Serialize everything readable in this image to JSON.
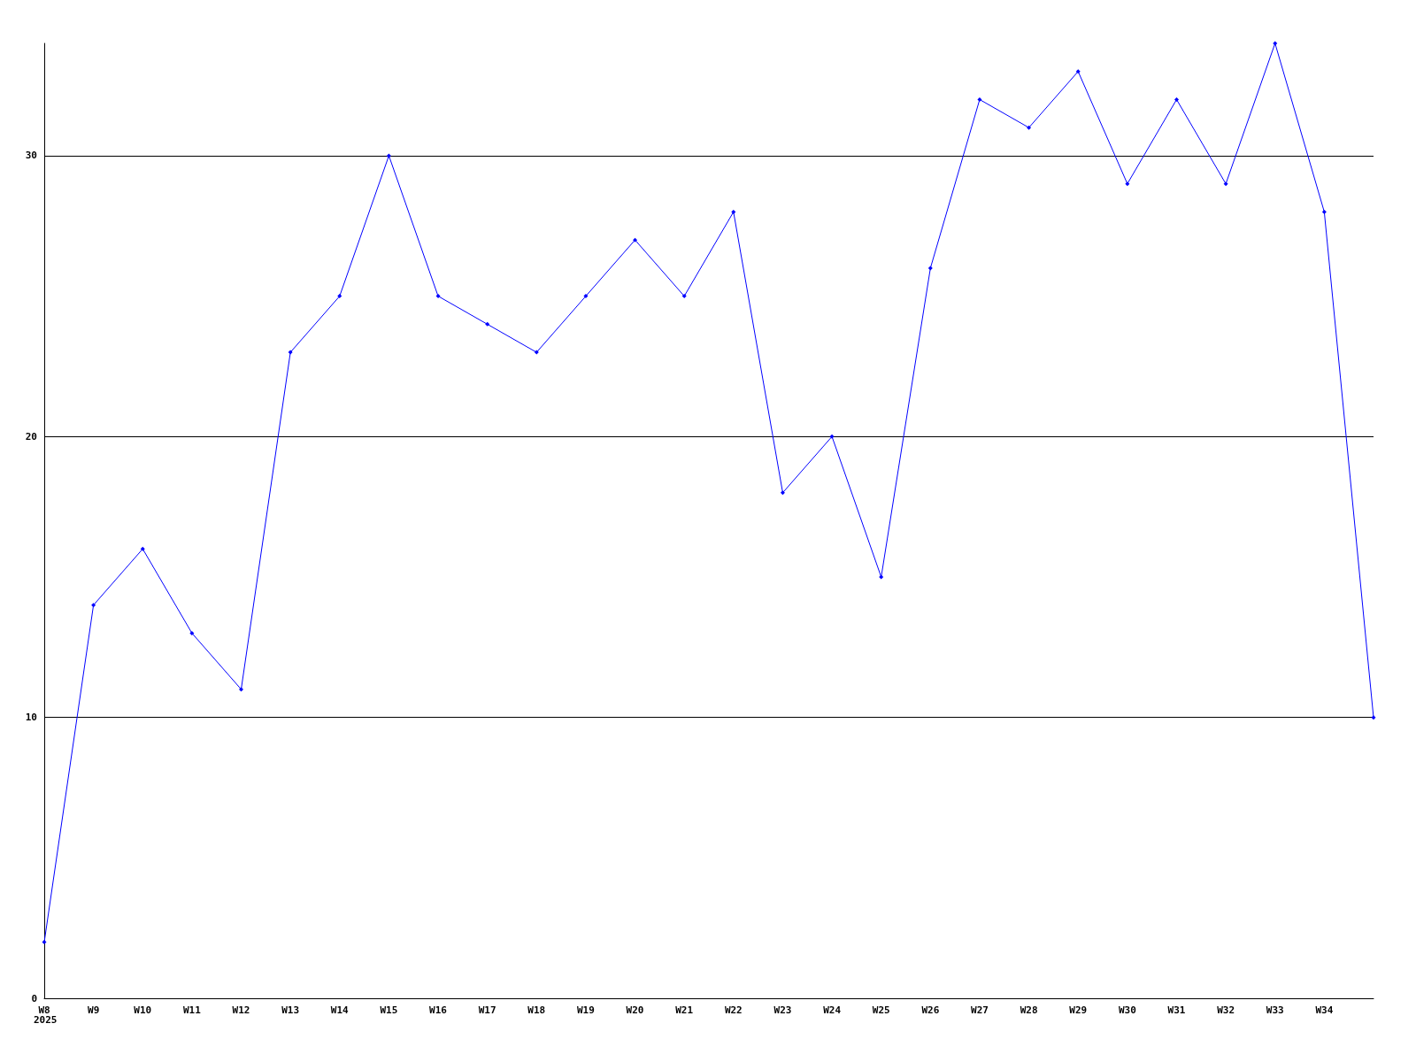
{
  "chart_data": {
    "type": "line",
    "categories": [
      "W8",
      "W9",
      "W10",
      "W11",
      "W12",
      "W13",
      "W14",
      "W15",
      "W16",
      "W17",
      "W18",
      "W19",
      "W20",
      "W21",
      "W22",
      "W23",
      "W24",
      "W25",
      "W26",
      "W27",
      "W28",
      "W29",
      "W30",
      "W31",
      "W32",
      "W33",
      "W34",
      null
    ],
    "series": [
      {
        "color": "#0000ff",
        "values": [
          2,
          14,
          16,
          13,
          11,
          23,
          25,
          30,
          25,
          24,
          23,
          25,
          27,
          25,
          28,
          18,
          20,
          15,
          26,
          32,
          31,
          33,
          29,
          32,
          29,
          34,
          28,
          10
        ]
      }
    ],
    "ylim": [
      0,
      34
    ],
    "yticks": [
      0,
      10,
      20,
      30
    ],
    "grid": "y",
    "marker": "diamond",
    "line_style": "solid",
    "annotations": [
      "2025"
    ]
  }
}
